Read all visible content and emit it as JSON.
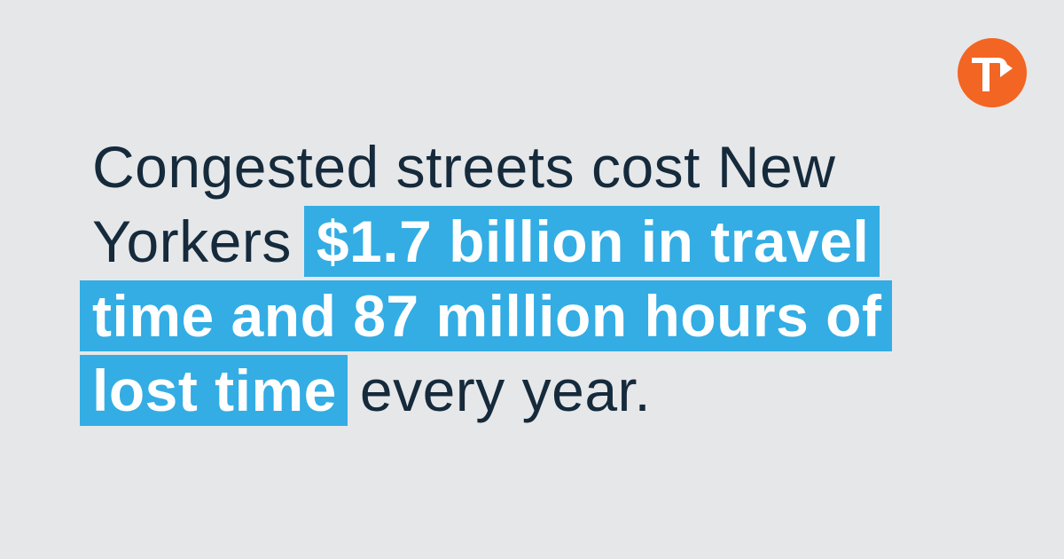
{
  "brand": {
    "logo_icon": "tstc-logo-icon",
    "logo_color": "#f26522",
    "background_color": "#e6e7e9",
    "highlight_color": "#33ade4",
    "text_color": "#152a3b"
  },
  "quote": {
    "line1": "Congested streets cost New",
    "line2_plain": "Yorkers",
    "line2_highlight": "$1.7 billion in travel",
    "line3_highlight": "time and 87 million hours of",
    "line4_highlight": "lost time",
    "line4_plain": "every year."
  }
}
